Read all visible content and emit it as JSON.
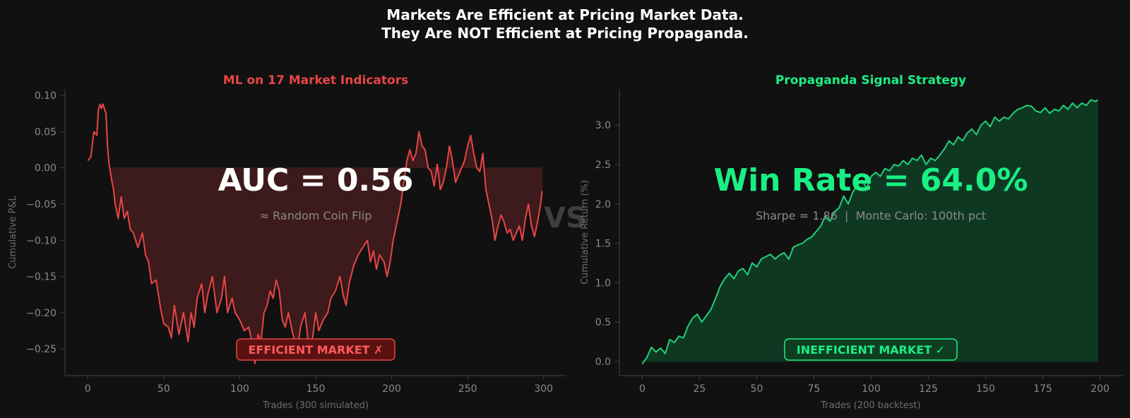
{
  "figure": {
    "suptitle_line1": "Markets Are Efficient at Pricing Market Data.",
    "suptitle_line2": "They Are NOT Efficient at Pricing Propaganda.",
    "vs_label": "VS"
  },
  "colors": {
    "background": "#111111",
    "red": "#e84545",
    "red_fill": "#3d1a1b",
    "green": "#1fd17a",
    "green_fill": "#0f3823",
    "green_text": "#1aef84",
    "axis": "#3a3a3a",
    "tick_text": "#8a8a8a",
    "label_text": "#6e6e6e"
  },
  "chart_data": [
    {
      "type": "line",
      "title": "ML on 17 Market Indicators",
      "xlabel": "Trades (300 simulated)",
      "ylabel": "Cumulative P&L",
      "xlim": [
        -15,
        315
      ],
      "ylim": [
        -0.287,
        0.108
      ],
      "xticks": [
        0,
        50,
        100,
        150,
        200,
        250,
        300
      ],
      "yticks": [
        -0.25,
        -0.2,
        -0.15,
        -0.1,
        -0.05,
        0.0,
        0.05,
        0.1
      ],
      "ytick_labels": [
        "−0.25",
        "−0.20",
        "−0.15",
        "−0.10",
        "−0.05",
        "0.00",
        "0.05",
        "0.10"
      ],
      "grid": false,
      "fill": "between series and 0 from x=15 to x=299",
      "annotation_main": "AUC = 0.56",
      "annotation_sub": "≈ Random Coin Flip",
      "badge": "EFFICIENT MARKET ✗",
      "anchors": [
        [
          0,
          0.01
        ],
        [
          2,
          0.015
        ],
        [
          4,
          0.05
        ],
        [
          6,
          0.045
        ],
        [
          7,
          0.08
        ],
        [
          8,
          0.088
        ],
        [
          9,
          0.082
        ],
        [
          10,
          0.088
        ],
        [
          12,
          0.075
        ],
        [
          13,
          0.03
        ],
        [
          14,
          0.005
        ],
        [
          16,
          -0.02
        ],
        [
          17,
          -0.03
        ],
        [
          18,
          -0.05
        ],
        [
          20,
          -0.07
        ],
        [
          22,
          -0.04
        ],
        [
          24,
          -0.07
        ],
        [
          26,
          -0.06
        ],
        [
          28,
          -0.085
        ],
        [
          30,
          -0.09
        ],
        [
          33,
          -0.11
        ],
        [
          36,
          -0.09
        ],
        [
          38,
          -0.12
        ],
        [
          40,
          -0.13
        ],
        [
          42,
          -0.16
        ],
        [
          45,
          -0.155
        ],
        [
          48,
          -0.195
        ],
        [
          50,
          -0.215
        ],
        [
          53,
          -0.22
        ],
        [
          55,
          -0.235
        ],
        [
          57,
          -0.19
        ],
        [
          60,
          -0.23
        ],
        [
          63,
          -0.2
        ],
        [
          66,
          -0.24
        ],
        [
          68,
          -0.2
        ],
        [
          70,
          -0.22
        ],
        [
          72,
          -0.18
        ],
        [
          75,
          -0.16
        ],
        [
          77,
          -0.2
        ],
        [
          79,
          -0.175
        ],
        [
          82,
          -0.15
        ],
        [
          85,
          -0.2
        ],
        [
          88,
          -0.18
        ],
        [
          90,
          -0.15
        ],
        [
          92,
          -0.2
        ],
        [
          95,
          -0.18
        ],
        [
          97,
          -0.2
        ],
        [
          100,
          -0.21
        ],
        [
          103,
          -0.225
        ],
        [
          106,
          -0.22
        ],
        [
          108,
          -0.24
        ],
        [
          110,
          -0.27
        ],
        [
          112,
          -0.23
        ],
        [
          114,
          -0.24
        ],
        [
          116,
          -0.2
        ],
        [
          118,
          -0.19
        ],
        [
          120,
          -0.17
        ],
        [
          122,
          -0.18
        ],
        [
          124,
          -0.155
        ],
        [
          126,
          -0.17
        ],
        [
          128,
          -0.21
        ],
        [
          130,
          -0.22
        ],
        [
          132,
          -0.2
        ],
        [
          135,
          -0.23
        ],
        [
          138,
          -0.25
        ],
        [
          140,
          -0.22
        ],
        [
          143,
          -0.2
        ],
        [
          145,
          -0.24
        ],
        [
          148,
          -0.235
        ],
        [
          150,
          -0.2
        ],
        [
          152,
          -0.225
        ],
        [
          155,
          -0.21
        ],
        [
          158,
          -0.2
        ],
        [
          160,
          -0.18
        ],
        [
          163,
          -0.17
        ],
        [
          166,
          -0.15
        ],
        [
          168,
          -0.175
        ],
        [
          170,
          -0.19
        ],
        [
          172,
          -0.16
        ],
        [
          175,
          -0.135
        ],
        [
          178,
          -0.12
        ],
        [
          181,
          -0.11
        ],
        [
          184,
          -0.1
        ],
        [
          186,
          -0.13
        ],
        [
          188,
          -0.115
        ],
        [
          190,
          -0.14
        ],
        [
          192,
          -0.12
        ],
        [
          195,
          -0.13
        ],
        [
          197,
          -0.15
        ],
        [
          199,
          -0.13
        ],
        [
          201,
          -0.1
        ],
        [
          203,
          -0.08
        ],
        [
          206,
          -0.05
        ],
        [
          208,
          -0.02
        ],
        [
          210,
          0.01
        ],
        [
          212,
          0.025
        ],
        [
          214,
          0.01
        ],
        [
          216,
          0.02
        ],
        [
          218,
          0.05
        ],
        [
          220,
          0.03
        ],
        [
          222,
          0.025
        ],
        [
          224,
          0.0
        ],
        [
          226,
          -0.005
        ],
        [
          228,
          -0.025
        ],
        [
          230,
          0.005
        ],
        [
          232,
          -0.03
        ],
        [
          234,
          -0.02
        ],
        [
          236,
          0.0
        ],
        [
          238,
          0.03
        ],
        [
          240,
          0.01
        ],
        [
          242,
          -0.02
        ],
        [
          244,
          -0.01
        ],
        [
          246,
          0.0
        ],
        [
          248,
          0.01
        ],
        [
          250,
          0.03
        ],
        [
          252,
          0.045
        ],
        [
          254,
          0.02
        ],
        [
          256,
          0.0
        ],
        [
          258,
          -0.005
        ],
        [
          260,
          0.02
        ],
        [
          262,
          -0.03
        ],
        [
          264,
          -0.05
        ],
        [
          266,
          -0.07
        ],
        [
          268,
          -0.1
        ],
        [
          270,
          -0.08
        ],
        [
          272,
          -0.065
        ],
        [
          274,
          -0.075
        ],
        [
          276,
          -0.09
        ],
        [
          278,
          -0.085
        ],
        [
          280,
          -0.1
        ],
        [
          282,
          -0.09
        ],
        [
          284,
          -0.08
        ],
        [
          286,
          -0.1
        ],
        [
          288,
          -0.07
        ],
        [
          290,
          -0.05
        ],
        [
          292,
          -0.08
        ],
        [
          294,
          -0.095
        ],
        [
          296,
          -0.075
        ],
        [
          298,
          -0.05
        ],
        [
          299,
          -0.032
        ]
      ]
    },
    {
      "type": "area",
      "title": "Propaganda Signal Strategy",
      "xlabel": "Trades (200 backtest)",
      "ylabel": "Cumulative Return (%)",
      "xlim": [
        -10,
        210
      ],
      "ylim": [
        -0.18,
        3.45
      ],
      "xticks": [
        0,
        25,
        50,
        75,
        100,
        125,
        150,
        175,
        200
      ],
      "yticks": [
        0.0,
        0.5,
        1.0,
        1.5,
        2.0,
        2.5,
        3.0
      ],
      "ytick_labels": [
        "0.0",
        "0.5",
        "1.0",
        "1.5",
        "2.0",
        "2.5",
        "3.0"
      ],
      "grid": false,
      "fill": "between series and 0 for all x",
      "annotation_main": "Win Rate = 64.0%",
      "annotation_sub": "Sharpe = 1.86  |  Monte Carlo: 100th pct",
      "badge": "INEFFICIENT MARKET ✓",
      "anchors": [
        [
          0,
          -0.03
        ],
        [
          2,
          0.05
        ],
        [
          4,
          0.18
        ],
        [
          6,
          0.12
        ],
        [
          8,
          0.17
        ],
        [
          10,
          0.1
        ],
        [
          12,
          0.28
        ],
        [
          14,
          0.24
        ],
        [
          16,
          0.32
        ],
        [
          18,
          0.3
        ],
        [
          20,
          0.45
        ],
        [
          22,
          0.55
        ],
        [
          24,
          0.6
        ],
        [
          26,
          0.5
        ],
        [
          28,
          0.58
        ],
        [
          30,
          0.66
        ],
        [
          32,
          0.8
        ],
        [
          34,
          0.95
        ],
        [
          36,
          1.05
        ],
        [
          38,
          1.12
        ],
        [
          40,
          1.05
        ],
        [
          42,
          1.15
        ],
        [
          44,
          1.18
        ],
        [
          46,
          1.1
        ],
        [
          48,
          1.25
        ],
        [
          50,
          1.2
        ],
        [
          52,
          1.3
        ],
        [
          54,
          1.33
        ],
        [
          56,
          1.36
        ],
        [
          58,
          1.3
        ],
        [
          60,
          1.35
        ],
        [
          62,
          1.38
        ],
        [
          64,
          1.3
        ],
        [
          66,
          1.45
        ],
        [
          68,
          1.48
        ],
        [
          70,
          1.5
        ],
        [
          72,
          1.55
        ],
        [
          74,
          1.58
        ],
        [
          76,
          1.65
        ],
        [
          78,
          1.72
        ],
        [
          80,
          1.85
        ],
        [
          82,
          1.78
        ],
        [
          84,
          1.9
        ],
        [
          86,
          1.95
        ],
        [
          88,
          2.1
        ],
        [
          90,
          2.0
        ],
        [
          92,
          2.15
        ],
        [
          94,
          2.25
        ],
        [
          96,
          2.3
        ],
        [
          98,
          2.2
        ],
        [
          100,
          2.35
        ],
        [
          102,
          2.4
        ],
        [
          104,
          2.35
        ],
        [
          106,
          2.45
        ],
        [
          108,
          2.42
        ],
        [
          110,
          2.5
        ],
        [
          112,
          2.48
        ],
        [
          114,
          2.55
        ],
        [
          116,
          2.5
        ],
        [
          118,
          2.58
        ],
        [
          120,
          2.55
        ],
        [
          122,
          2.62
        ],
        [
          124,
          2.5
        ],
        [
          126,
          2.58
        ],
        [
          128,
          2.55
        ],
        [
          130,
          2.62
        ],
        [
          132,
          2.7
        ],
        [
          134,
          2.8
        ],
        [
          136,
          2.75
        ],
        [
          138,
          2.85
        ],
        [
          140,
          2.8
        ],
        [
          142,
          2.9
        ],
        [
          144,
          2.95
        ],
        [
          146,
          2.88
        ],
        [
          148,
          3.0
        ],
        [
          150,
          3.05
        ],
        [
          152,
          2.98
        ],
        [
          154,
          3.1
        ],
        [
          156,
          3.05
        ],
        [
          158,
          3.1
        ],
        [
          160,
          3.08
        ],
        [
          162,
          3.15
        ],
        [
          164,
          3.2
        ],
        [
          166,
          3.22
        ],
        [
          168,
          3.25
        ],
        [
          170,
          3.24
        ],
        [
          172,
          3.18
        ],
        [
          174,
          3.16
        ],
        [
          176,
          3.22
        ],
        [
          178,
          3.15
        ],
        [
          180,
          3.2
        ],
        [
          182,
          3.18
        ],
        [
          184,
          3.25
        ],
        [
          186,
          3.2
        ],
        [
          188,
          3.28
        ],
        [
          190,
          3.22
        ],
        [
          192,
          3.28
        ],
        [
          194,
          3.25
        ],
        [
          196,
          3.32
        ],
        [
          198,
          3.3
        ],
        [
          199,
          3.32
        ]
      ]
    }
  ]
}
